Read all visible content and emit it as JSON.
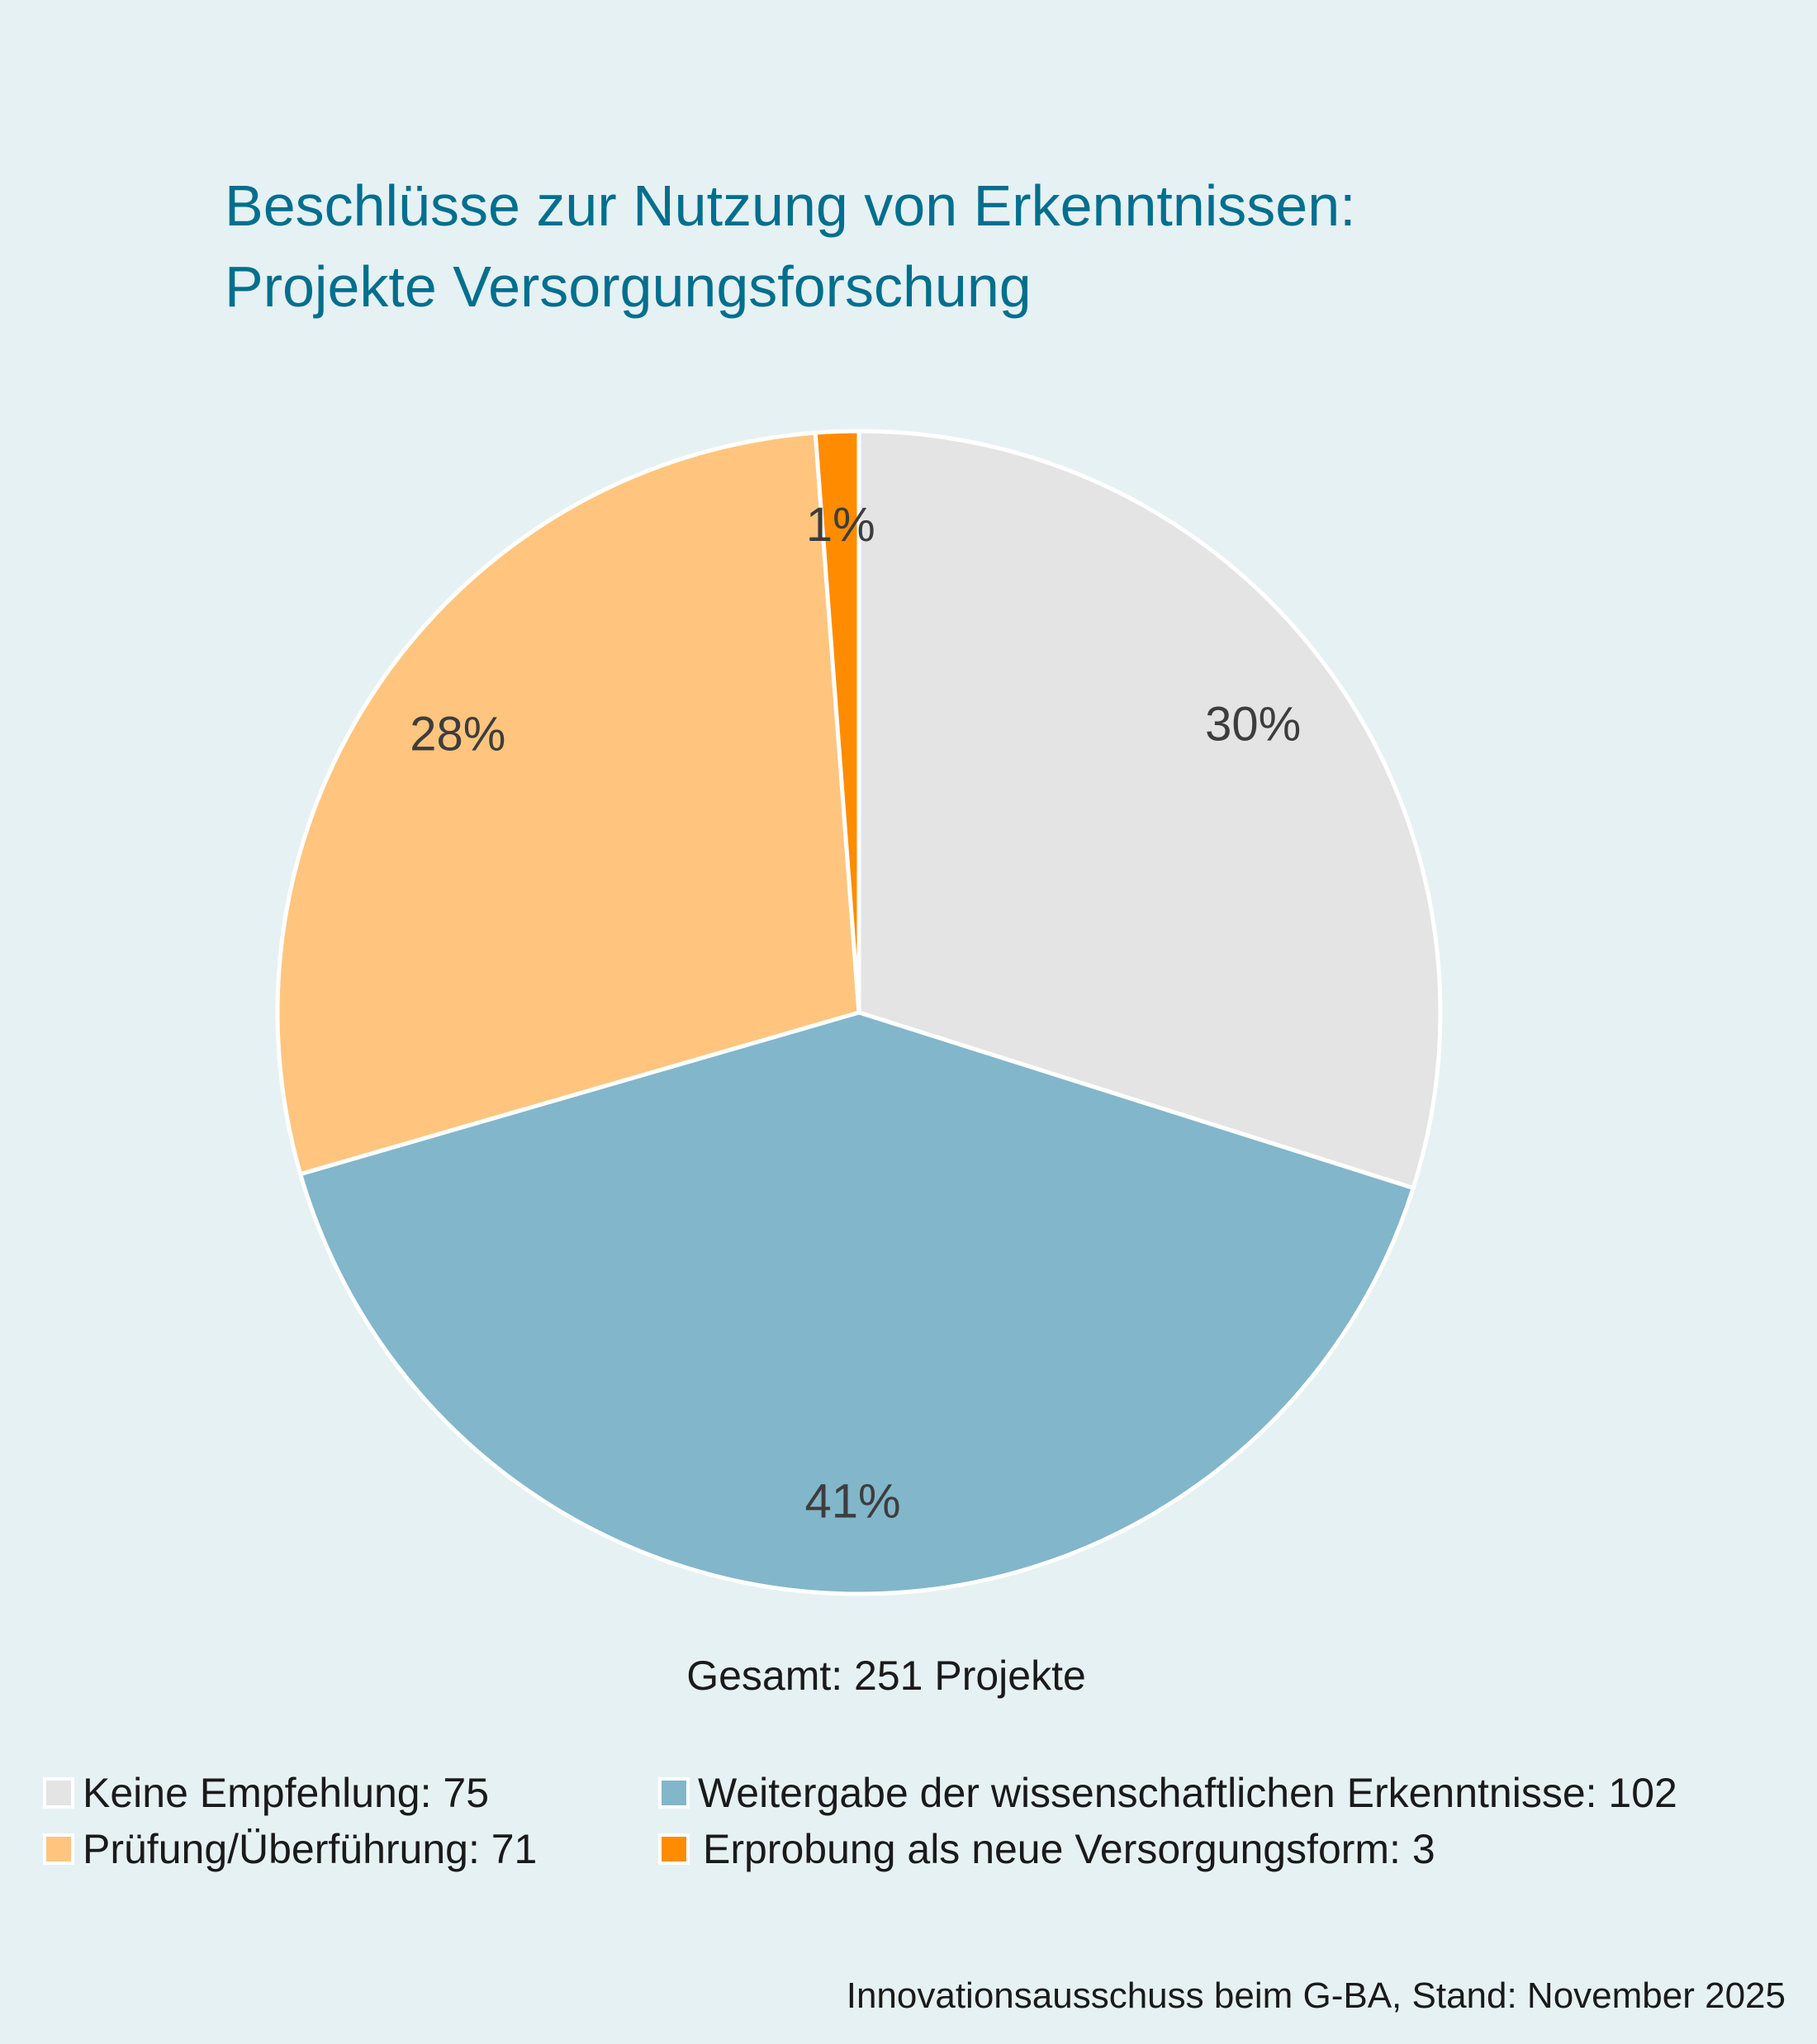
{
  "title_lines": [
    "Beschlüsse zur Nutzung von Erkenntnissen:",
    "Projekte Versorgungsforschung"
  ],
  "total_label": "Gesamt: 251 Projekte",
  "source": "Innovationsausschuss beim G-BA, Stand: November 2025",
  "chart_data": {
    "type": "pie",
    "start": "top",
    "direction": "clockwise",
    "slices": [
      {
        "name": "Keine Empfehlung",
        "value": 75,
        "pct_label": "30%",
        "color": "#e4e4e4",
        "legend": "Keine Empfehlung: 75"
      },
      {
        "name": "Weitergabe der wissenschaftlichen Erkenntnisse",
        "value": 102,
        "pct_label": "41%",
        "color": "#82b6ca",
        "legend": "Weitergabe der wissenschaftlichen Erkenntnisse: 102"
      },
      {
        "name": "Prüfung/Überführung",
        "value": 71,
        "pct_label": "28%",
        "color": "#ffc57f",
        "legend": "Prüfung/Überführung: 71"
      },
      {
        "name": "Erprobung als neue Versorgungsform",
        "value": 3,
        "pct_label": "1%",
        "color": "#ff8c00",
        "legend": "Erprobung als neue Versorgungsform: 3"
      }
    ]
  }
}
